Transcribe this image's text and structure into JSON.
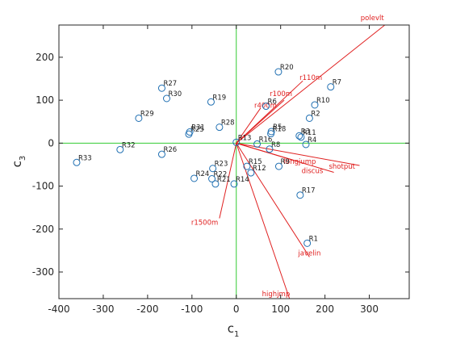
{
  "chart_data": {
    "type": "scatter",
    "title": "",
    "xlabel": "c",
    "xlabel_sub": "1",
    "ylabel": "c",
    "ylabel_sub": "3",
    "xlim": [
      -400,
      390
    ],
    "ylim": [
      -362,
      275
    ],
    "xticks": [
      -400,
      -300,
      -200,
      -100,
      0,
      100,
      200,
      300
    ],
    "yticks": [
      -300,
      -200,
      -100,
      0,
      100,
      200
    ],
    "xtick_labels": [
      "-400",
      "-300",
      "-200",
      "-100",
      "0",
      "100",
      "200",
      "300"
    ],
    "ytick_labels": [
      "-300",
      "-200",
      "-100",
      "0",
      "100",
      "200"
    ],
    "grid": false,
    "colors": {
      "points": "#1f6fb2",
      "vectors": "#e02020",
      "zero_lines": "#33cc33",
      "axes": "#262626"
    },
    "observations": [
      {
        "label": "R1",
        "x": 160,
        "y": -233
      },
      {
        "label": "R2",
        "x": 165,
        "y": 58
      },
      {
        "label": "R3",
        "x": 142,
        "y": 17
      },
      {
        "label": "R4",
        "x": 157,
        "y": -3
      },
      {
        "label": "R5",
        "x": 79,
        "y": 27
      },
      {
        "label": "R6",
        "x": 67,
        "y": 86
      },
      {
        "label": "R7",
        "x": 213,
        "y": 131
      },
      {
        "label": "R8",
        "x": 75,
        "y": -14
      },
      {
        "label": "R9",
        "x": 96,
        "y": -54
      },
      {
        "label": "R10",
        "x": 177,
        "y": 89
      },
      {
        "label": "R11",
        "x": 146,
        "y": 14
      },
      {
        "label": "R12",
        "x": 33,
        "y": -69
      },
      {
        "label": "R13",
        "x": 0,
        "y": 2
      },
      {
        "label": "R14",
        "x": -5,
        "y": -95
      },
      {
        "label": "R15",
        "x": 24,
        "y": -54
      },
      {
        "label": "R16",
        "x": 47,
        "y": -2
      },
      {
        "label": "R17",
        "x": 144,
        "y": -121
      },
      {
        "label": "R18",
        "x": 78,
        "y": 22
      },
      {
        "label": "R19",
        "x": -57,
        "y": 96
      },
      {
        "label": "R20",
        "x": 95,
        "y": 166
      },
      {
        "label": "R21",
        "x": -47,
        "y": -95
      },
      {
        "label": "R22",
        "x": -55,
        "y": -83
      },
      {
        "label": "R23",
        "x": -53,
        "y": -59
      },
      {
        "label": "R24",
        "x": -95,
        "y": -82
      },
      {
        "label": "R25",
        "x": -107,
        "y": 21
      },
      {
        "label": "R26",
        "x": -168,
        "y": -26
      },
      {
        "label": "R27",
        "x": -168,
        "y": 128
      },
      {
        "label": "R28",
        "x": -38,
        "y": 37
      },
      {
        "label": "R29",
        "x": -220,
        "y": 58
      },
      {
        "label": "R30",
        "x": -157,
        "y": 104
      },
      {
        "label": "R31",
        "x": -105,
        "y": 26
      },
      {
        "label": "R32",
        "x": -262,
        "y": -15
      },
      {
        "label": "R33",
        "x": -360,
        "y": -45
      }
    ],
    "variables": [
      {
        "label": "polevlt",
        "x": 335,
        "y": 275
      },
      {
        "label": "r110m",
        "x": 150,
        "y": 145
      },
      {
        "label": "r100m",
        "x": 108,
        "y": 100
      },
      {
        "label": "r400m",
        "x": 55,
        "y": 82
      },
      {
        "label": "longjump",
        "x": 140,
        "y": -43
      },
      {
        "label": "shotput",
        "x": 278,
        "y": -52
      },
      {
        "label": "discus",
        "x": 220,
        "y": -68
      },
      {
        "label": "r1500m",
        "x": -38,
        "y": -175
      },
      {
        "label": "javelin",
        "x": 165,
        "y": -265
      },
      {
        "label": "highjmp",
        "x": 120,
        "y": -362
      }
    ]
  }
}
